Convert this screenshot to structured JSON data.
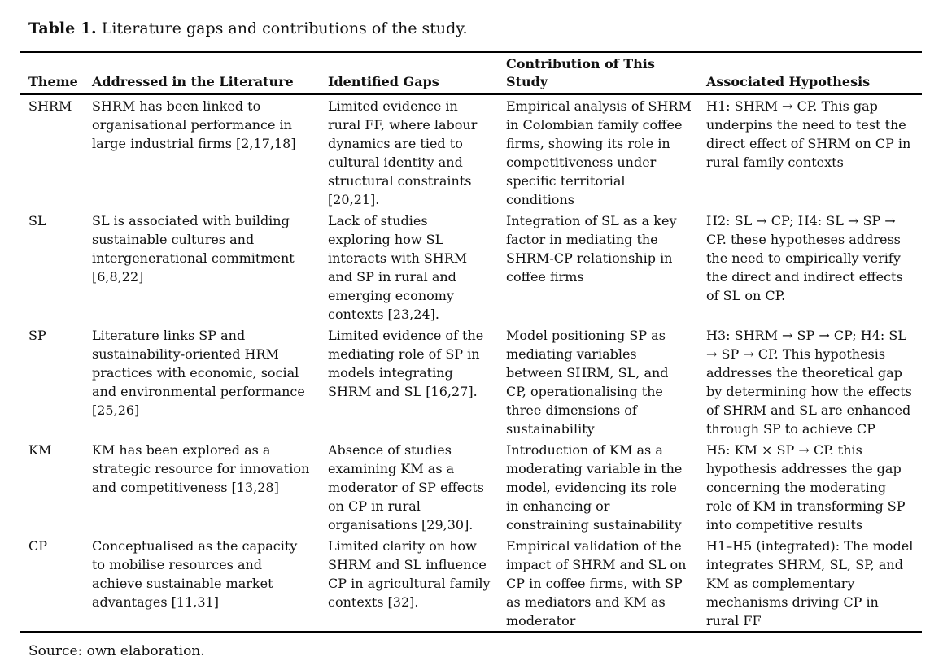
{
  "caption": {
    "label": "Table 1.",
    "text": " Literature gaps and contributions of the study."
  },
  "table": {
    "columns": {
      "theme": "Theme",
      "addressed": "Addressed in the Literature",
      "gaps": "Identified Gaps",
      "contribution": "Contribution of This Study",
      "hypothesis": "Associated Hypothesis"
    },
    "rows": [
      {
        "theme": "SHRM",
        "addressed": "SHRM has been linked to organisational performance in large industrial firms [2,17,18]",
        "gaps": "Limited evidence in rural FF, where labour dynamics are tied to cultural identity and structural constraints [20,21].",
        "contribution": "Empirical analysis of SHRM in Colombian family coffee firms, showing its role in competitiveness under specific territorial conditions",
        "hypothesis": "H1: SHRM → CP. This gap underpins the need to test the direct effect of SHRM on CP in rural family contexts"
      },
      {
        "theme": "SL",
        "addressed": "SL is associated with building sustainable cultures and intergenerational commitment [6,8,22]",
        "gaps": "Lack of studies exploring how SL interacts with SHRM and SP in rural and emerging economy contexts [23,24].",
        "contribution": "Integration of SL as a key factor in mediating the SHRM-CP relationship in coffee firms",
        "hypothesis": "H2: SL → CP; H4: SL → SP → CP. these hypotheses address the need to empirically verify the direct and indirect effects of SL on CP."
      },
      {
        "theme": "SP",
        "addressed": "Literature links SP and sustainability-oriented HRM practices with economic, social and environmental performance [25,26]",
        "gaps": "Limited evidence of the mediating role of SP in models integrating SHRM and SL [16,27].",
        "contribution": "Model positioning SP as mediating variables between SHRM, SL, and CP, operationalising the three dimensions of sustainability",
        "hypothesis": "H3: SHRM → SP → CP; H4: SL → SP → CP. This hypothesis addresses the theoretical gap by determining how the effects of SHRM and SL are enhanced through SP to achieve CP"
      },
      {
        "theme": "KM",
        "addressed": "KM has been explored as a strategic resource for innovation and competitiveness [13,28]",
        "gaps": "Absence of studies examining KM as a moderator of SP effects on CP in rural organisations [29,30].",
        "contribution": "Introduction of KM as a moderating variable in the model, evidencing its role in enhancing or constraining sustainability",
        "hypothesis": "H5: KM × SP → CP. this hypothesis addresses the gap concerning the moderating role of KM in transforming SP into competitive results"
      },
      {
        "theme": "CP",
        "addressed": "Conceptualised as the capacity to mobilise resources and achieve sustainable market advantages [11,31]",
        "gaps": "Limited clarity on how SHRM and SL influence CP in agricultural family contexts [32].",
        "contribution": "Empirical validation of the impact of SHRM and SL on CP in coffee firms, with SP as mediators and KM as moderator",
        "hypothesis": "H1–H5 (integrated): The model integrates SHRM, SL, SP, and KM as complementary mechanisms driving CP in rural FF"
      }
    ]
  },
  "footer": {
    "source": "Source: own elaboration."
  }
}
